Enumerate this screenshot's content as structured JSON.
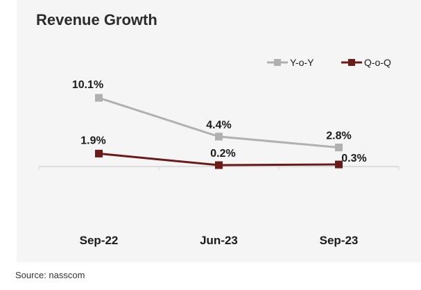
{
  "title": "Revenue Growth",
  "source": "Source: nasscom",
  "chart_data": {
    "type": "line",
    "title": "Revenue Growth",
    "categories": [
      "Sep-22",
      "Jun-23",
      "Sep-23"
    ],
    "series": [
      {
        "name": "Y-o-Y",
        "values": [
          10.1,
          4.4,
          2.8
        ],
        "labels": [
          "10.1%",
          "4.4%",
          "2.8%"
        ],
        "color": "#b0b0b0"
      },
      {
        "name": "Q-o-Q",
        "values": [
          1.9,
          0.2,
          0.3
        ],
        "labels": [
          "1.9%",
          "0.2%",
          "0.3%"
        ],
        "color": "#6b1a1a"
      }
    ],
    "ylim": [
      -8,
      13
    ],
    "grid": false,
    "legend": "top-right"
  }
}
